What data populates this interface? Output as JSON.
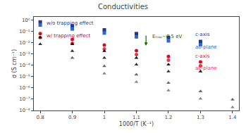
{
  "chart_data": {
    "type": "scatter",
    "title": "Conductivities",
    "xlabel": "1000/T (K⁻¹)",
    "ylabel": "σ (S cm⁻¹)",
    "log": "y",
    "grid": false,
    "xlim": [
      0.78,
      1.42
    ],
    "xticks": [
      0.8,
      0.9,
      1.0,
      1.1,
      1.2,
      1.3,
      1.4
    ],
    "ylim": [
      1e-08,
      2.0
    ],
    "yticks": [
      {
        "value": 1e-08,
        "label": "10⁻⁸"
      },
      {
        "value": 1e-07,
        "label": "10⁻⁷"
      },
      {
        "value": 1e-06,
        "label": "10⁻⁶"
      },
      {
        "value": 1e-05,
        "label": "10⁻⁵"
      },
      {
        "value": 0.0001,
        "label": "10⁻⁴"
      },
      {
        "value": 0.001,
        "label": "10⁻³"
      },
      {
        "value": 0.01,
        "label": "10⁻²"
      },
      {
        "value": 0.1,
        "label": "10⁻¹"
      },
      {
        "value": 1,
        "label": "10⁰"
      }
    ],
    "series": [
      {
        "color": "#1a3a8a",
        "marker": "square",
        "x": [
          0.8,
          0.9,
          1.0,
          1.1,
          1.2,
          1.3
        ],
        "values": [
          0.7,
          0.32,
          0.14,
          0.065,
          0.03,
          0.013
        ]
      },
      {
        "color": "#3366cc",
        "marker": "square",
        "x": [
          0.8,
          0.9,
          1.0,
          1.1,
          1.2,
          1.3
        ],
        "values": [
          0.38,
          0.17,
          0.075,
          0.034,
          0.015,
          0.007
        ]
      },
      {
        "color": "#cc1122",
        "marker": "circle",
        "x": [
          0.8,
          0.9,
          1.0,
          1.1,
          1.2,
          1.3
        ],
        "values": [
          0.065,
          0.02,
          0.0063,
          0.002,
          0.00062,
          0.0002
        ]
      },
      {
        "color": "#ee3344",
        "marker": "circle",
        "x": [
          0.8,
          0.9,
          1.0,
          1.1,
          1.2,
          1.3
        ],
        "values": [
          0.03,
          0.0092,
          0.0029,
          0.00091,
          0.00029,
          9.1e-05
        ]
      },
      {
        "color": "#111111",
        "marker": "triangle-up",
        "x": [
          0.8,
          0.9,
          1.0,
          1.1,
          1.2,
          1.3
        ],
        "values": [
          0.03,
          0.0075,
          0.0019,
          0.00047,
          0.00012,
          2.9e-05
        ]
      },
      {
        "color": "#333333",
        "marker": "triangle-up",
        "x": [
          0.8,
          0.9,
          1.0,
          1.1,
          1.2
        ],
        "values": [
          0.0075,
          0.0019,
          0.00047,
          0.00012,
          2.9e-05
        ]
      },
      {
        "color": "#666666",
        "marker": "triangle-up",
        "x": [
          0.9,
          1.0,
          1.1,
          1.2,
          1.3,
          1.4
        ],
        "values": [
          0.00047,
          8.5e-05,
          1.55e-05,
          2.8e-06,
          5.1e-07,
          9.3e-08
        ]
      },
      {
        "color": "#888888",
        "marker": "triangle-up",
        "x": [
          1.0,
          1.1,
          1.2,
          1.3,
          1.4
        ],
        "values": [
          1.9e-05,
          3.4e-06,
          6e-07,
          1.1e-07,
          1.9e-08
        ]
      }
    ],
    "annotations": [
      {
        "text": "w/o trapping effect",
        "x": 0.815,
        "y": 0.22,
        "color": "#1a3a8a"
      },
      {
        "text": "w/ trapping effect",
        "x": 0.815,
        "y": 0.018,
        "color": "#aa1133"
      },
      {
        "text": "c-axis",
        "x": 1.28,
        "y": 0.022,
        "color": "#1a3a8a"
      },
      {
        "text": "ab-plane",
        "x": 1.28,
        "y": 0.01,
        "color": "#3366cc"
      },
      {
        "text": "c-axis",
        "x": 1.28,
        "y": 0.00028,
        "color": "#cc1122"
      },
      {
        "text": "ab-plane",
        "x": 1.28,
        "y": 0.00013,
        "color": "#ee3344"
      },
      {
        "text": "Eₜᵣₐₚ~0.5 eV",
        "x": 1.145,
        "y": 0.016,
        "color": "#116600"
      }
    ],
    "arrows": [
      {
        "x": 1.13,
        "y_from": 0.055,
        "y_to": 0.0055,
        "color": "#116600"
      }
    ]
  }
}
